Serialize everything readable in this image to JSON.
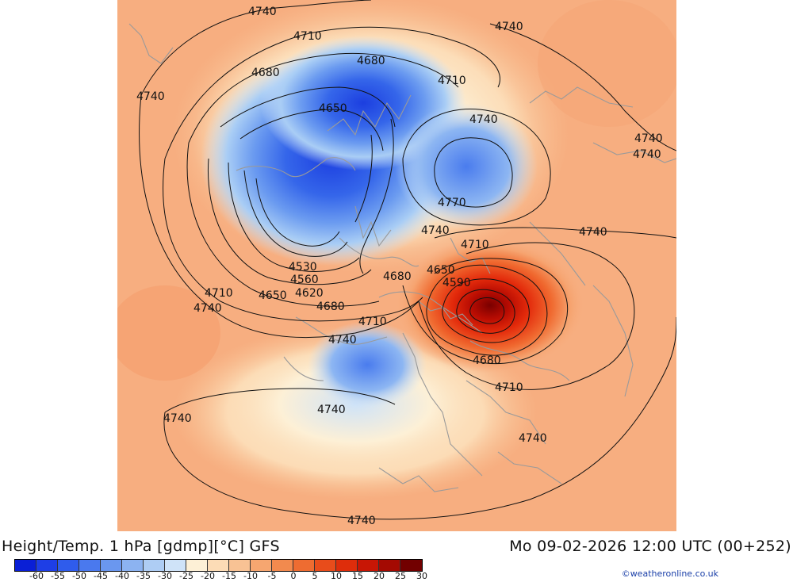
{
  "map": {
    "contour_labels": [
      {
        "text": "4740"
      },
      {
        "text": "4740"
      },
      {
        "text": "4710"
      },
      {
        "text": "4680"
      },
      {
        "text": "4680"
      },
      {
        "text": "4710"
      },
      {
        "text": "4740"
      },
      {
        "text": "4650"
      },
      {
        "text": "4740"
      },
      {
        "text": "4740"
      },
      {
        "text": "4740"
      },
      {
        "text": "4770"
      },
      {
        "text": "4740"
      },
      {
        "text": "4740"
      },
      {
        "text": "4710"
      },
      {
        "text": "4650"
      },
      {
        "text": "4590"
      },
      {
        "text": "4530"
      },
      {
        "text": "4560"
      },
      {
        "text": "4620"
      },
      {
        "text": "4650"
      },
      {
        "text": "4710"
      },
      {
        "text": "4680"
      },
      {
        "text": "4680"
      },
      {
        "text": "4740"
      },
      {
        "text": "4710"
      },
      {
        "text": "4740"
      },
      {
        "text": "4680"
      },
      {
        "text": "4710"
      },
      {
        "text": "4740"
      },
      {
        "text": "4740"
      },
      {
        "text": "4740"
      },
      {
        "text": "4740"
      }
    ]
  },
  "footer": {
    "title": "Height/Temp. 1 hPa [gdmp][°C] GFS",
    "datetime": "Mo 09-02-2026 12:00 UTC (00+252)",
    "credit": "©weatheronline.co.uk"
  },
  "colorbar": {
    "colors": [
      "#0a1fd6",
      "#1e3ee6",
      "#2f5cec",
      "#4a79ee",
      "#6a97ef",
      "#8cb3f1",
      "#aecdf4",
      "#cfe3f8",
      "#fdf0d6",
      "#fcdcb6",
      "#f8c294",
      "#f6a670",
      "#f28a4e",
      "#ee6c31",
      "#e84c1b",
      "#de2d0b",
      "#c81605",
      "#a40a02",
      "#720000"
    ],
    "labels": [
      "-60",
      "-55",
      "-50",
      "-45",
      "-40",
      "-35",
      "-30",
      "-25",
      "-20",
      "-15",
      "-10",
      "-5",
      "0",
      "5",
      "10",
      "15",
      "20",
      "25",
      "30"
    ]
  }
}
